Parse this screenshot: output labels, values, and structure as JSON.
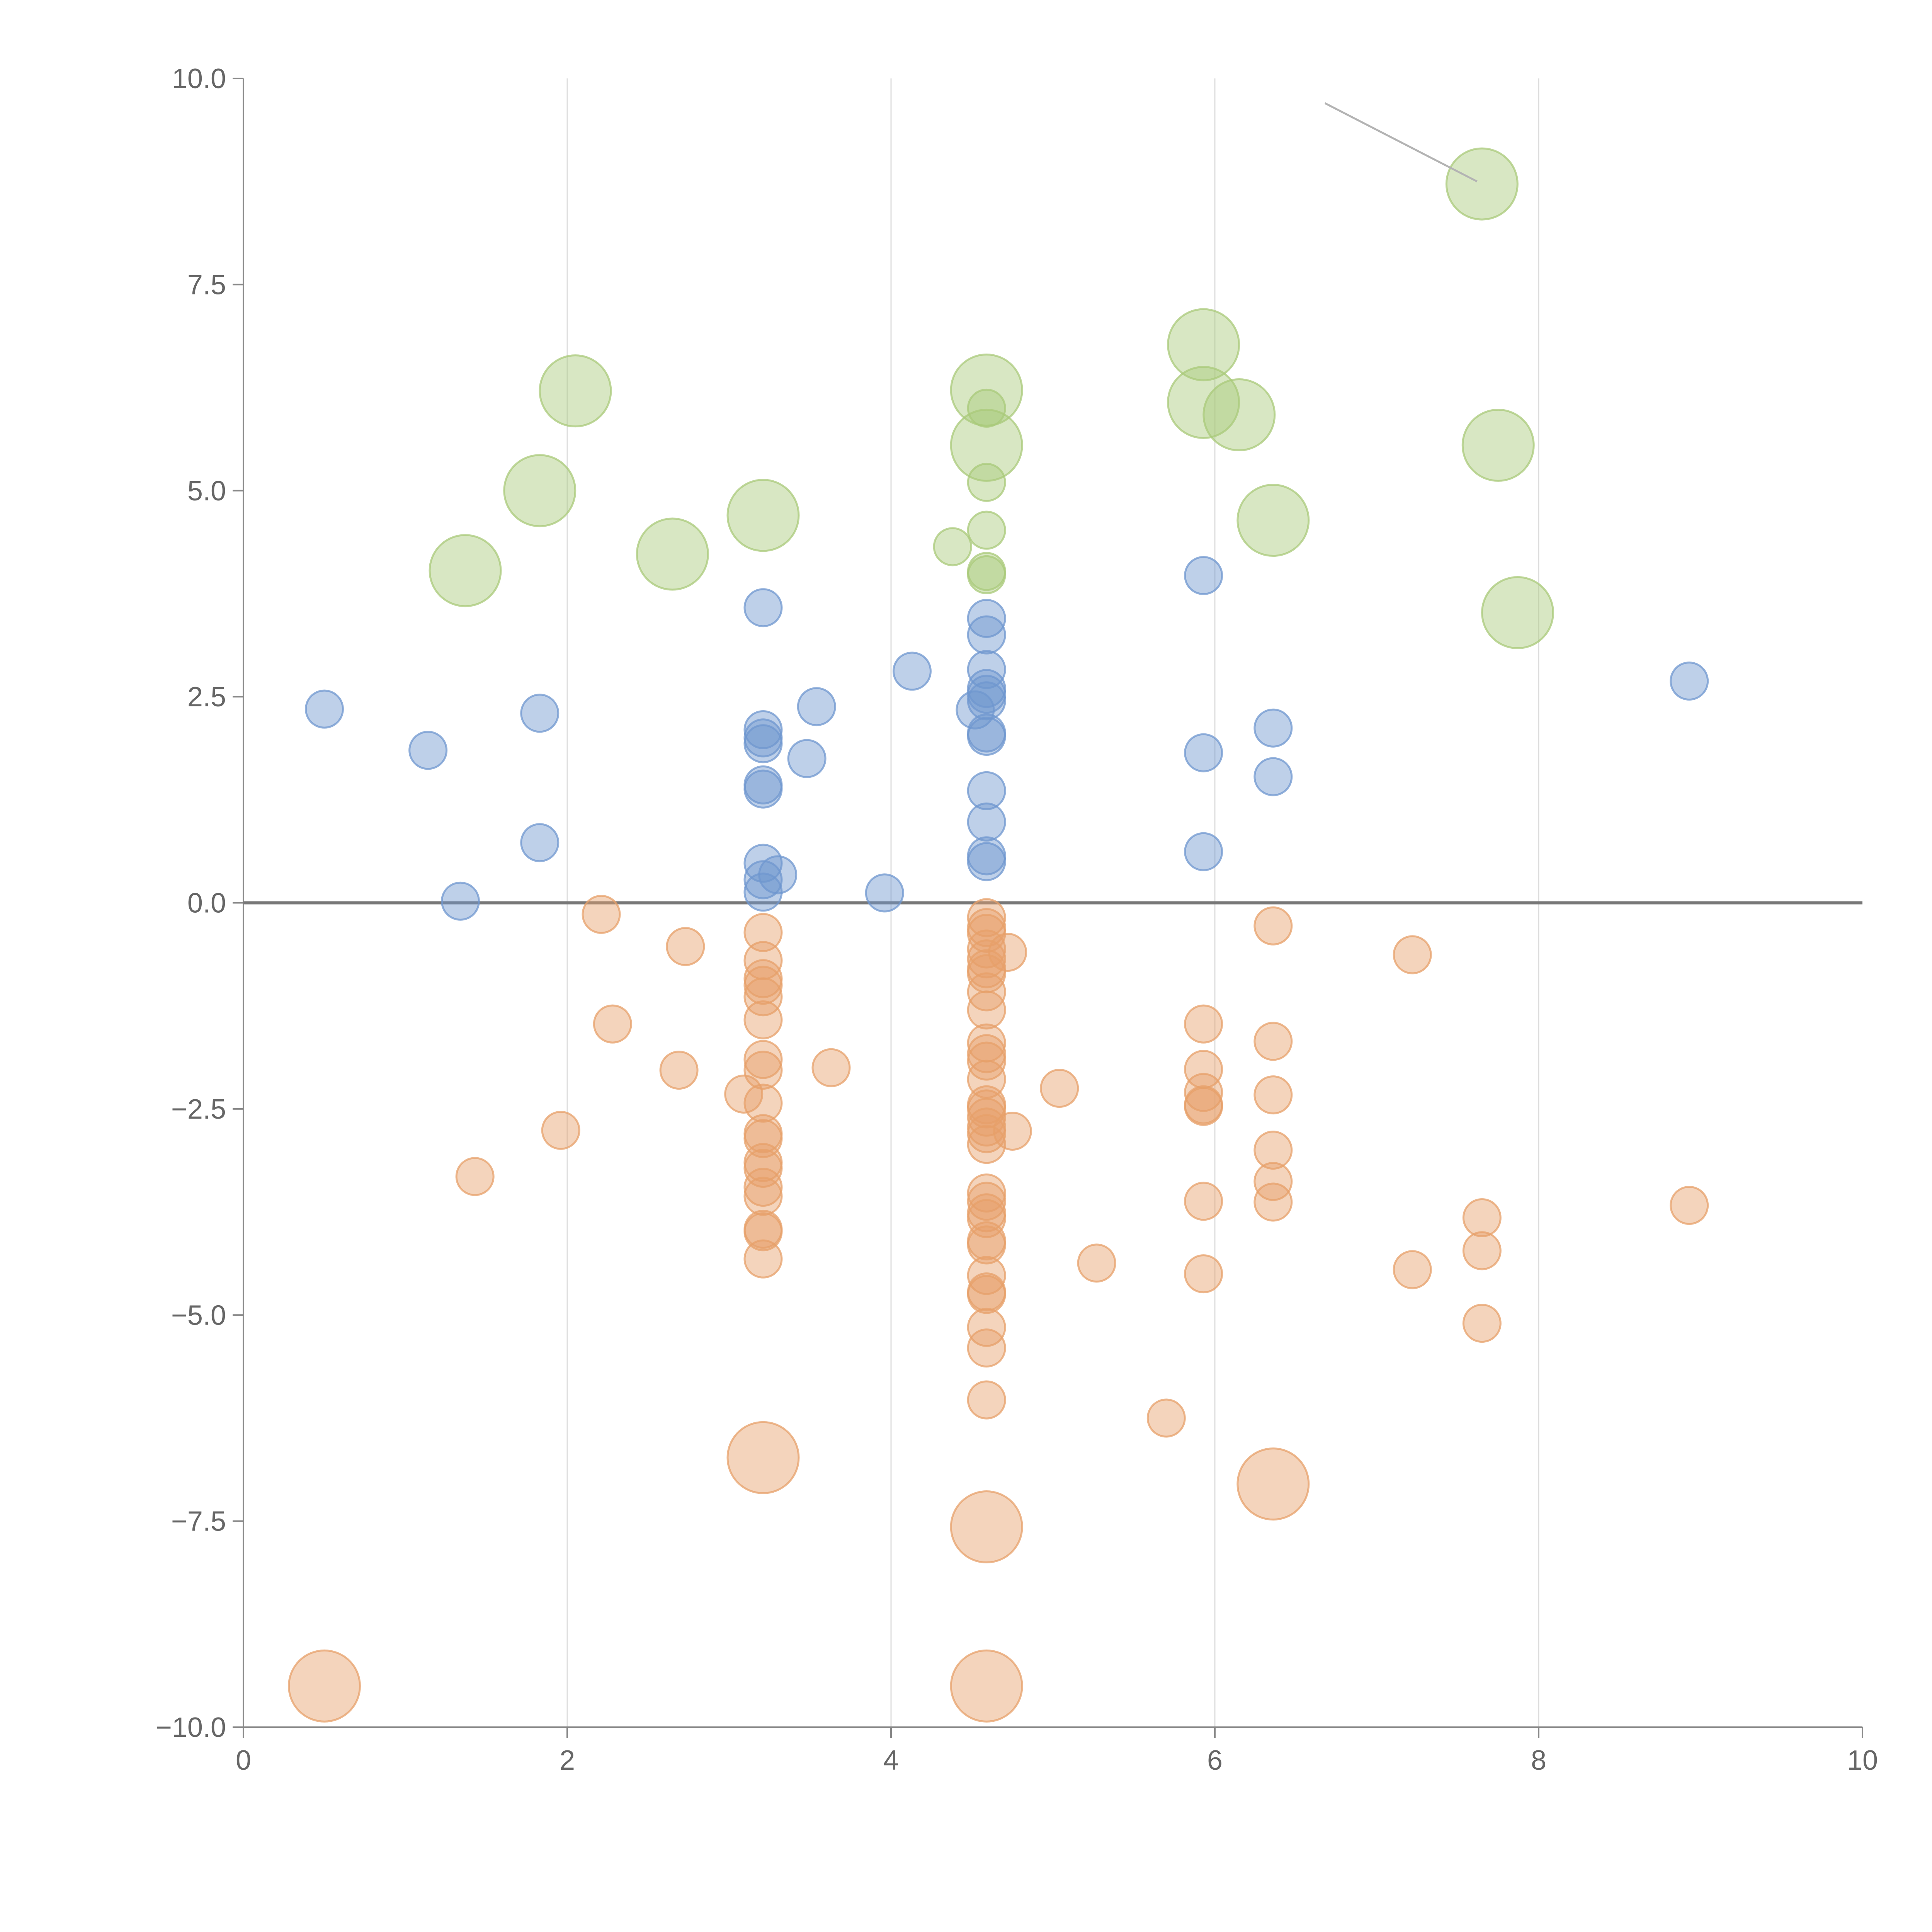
{
  "chart_data": {
    "type": "scatter",
    "title": "",
    "xlabel": "",
    "ylabel": "",
    "xlim": [
      0,
      10
    ],
    "ylim": [
      -10,
      10
    ],
    "x_ticks": [
      0,
      2,
      4,
      6,
      8,
      10
    ],
    "x_tick_labels": [
      "0",
      "2",
      "4",
      "6",
      "8",
      "10"
    ],
    "y_ticks": [
      10,
      7.5,
      5,
      2.5,
      0,
      -2.5,
      -5,
      -7.5,
      -10
    ],
    "y_tick_labels": [
      "10.0",
      "7.5",
      "5.0",
      "2.5",
      "0.0",
      "−2.5",
      "−5.0",
      "−7.5",
      "−10.0"
    ],
    "grid": "vertical",
    "reference_line_y": 0,
    "legend": "none",
    "series": [
      {
        "name": "positive",
        "color": "#6f97cf",
        "points": [
          {
            "x": 0.5,
            "y": 2.35
          },
          {
            "x": 1.14,
            "y": 1.85
          },
          {
            "x": 1.34,
            "y": 0.02
          },
          {
            "x": 1.83,
            "y": 2.3
          },
          {
            "x": 1.83,
            "y": 0.73
          },
          {
            "x": 3.21,
            "y": 3.58
          },
          {
            "x": 3.21,
            "y": 2.1
          },
          {
            "x": 3.21,
            "y": 2.0
          },
          {
            "x": 3.21,
            "y": 1.93
          },
          {
            "x": 3.21,
            "y": 1.43
          },
          {
            "x": 3.21,
            "y": 1.38
          },
          {
            "x": 3.21,
            "y": 0.48
          },
          {
            "x": 3.21,
            "y": 0.28
          },
          {
            "x": 3.21,
            "y": 0.13
          },
          {
            "x": 3.3,
            "y": 0.34
          },
          {
            "x": 3.48,
            "y": 1.75
          },
          {
            "x": 3.54,
            "y": 2.38
          },
          {
            "x": 3.96,
            "y": 0.12
          },
          {
            "x": 4.13,
            "y": 2.81
          },
          {
            "x": 4.52,
            "y": 2.34
          },
          {
            "x": 4.59,
            "y": 3.45
          },
          {
            "x": 4.59,
            "y": 3.25
          },
          {
            "x": 4.59,
            "y": 2.83
          },
          {
            "x": 4.59,
            "y": 2.6
          },
          {
            "x": 4.59,
            "y": 2.53
          },
          {
            "x": 4.59,
            "y": 2.45
          },
          {
            "x": 4.59,
            "y": 2.06
          },
          {
            "x": 4.59,
            "y": 2.02
          },
          {
            "x": 4.59,
            "y": 1.36
          },
          {
            "x": 4.59,
            "y": 0.98
          },
          {
            "x": 4.59,
            "y": 0.57
          },
          {
            "x": 4.59,
            "y": 0.5
          },
          {
            "x": 5.93,
            "y": 3.97
          },
          {
            "x": 5.93,
            "y": 1.82
          },
          {
            "x": 5.93,
            "y": 0.62
          },
          {
            "x": 6.36,
            "y": 2.12
          },
          {
            "x": 6.36,
            "y": 1.53
          },
          {
            "x": 8.93,
            "y": 2.69
          }
        ]
      },
      {
        "name": "negative",
        "color": "#e7a06a",
        "points": [
          {
            "x": 1.43,
            "y": -3.32
          },
          {
            "x": 1.96,
            "y": -2.76
          },
          {
            "x": 2.21,
            "y": -0.14
          },
          {
            "x": 2.28,
            "y": -1.47
          },
          {
            "x": 2.69,
            "y": -2.03
          },
          {
            "x": 2.73,
            "y": -0.53
          },
          {
            "x": 3.09,
            "y": -2.32
          },
          {
            "x": 3.21,
            "y": -0.36
          },
          {
            "x": 3.21,
            "y": -0.7
          },
          {
            "x": 3.21,
            "y": -0.92
          },
          {
            "x": 3.21,
            "y": -1.0
          },
          {
            "x": 3.21,
            "y": -1.14
          },
          {
            "x": 3.21,
            "y": -1.42
          },
          {
            "x": 3.21,
            "y": -1.9
          },
          {
            "x": 3.21,
            "y": -2.03
          },
          {
            "x": 3.21,
            "y": -2.43
          },
          {
            "x": 3.21,
            "y": -2.8
          },
          {
            "x": 3.21,
            "y": -2.86
          },
          {
            "x": 3.21,
            "y": -3.15
          },
          {
            "x": 3.21,
            "y": -3.22
          },
          {
            "x": 3.21,
            "y": -3.45
          },
          {
            "x": 3.21,
            "y": -3.56
          },
          {
            "x": 3.21,
            "y": -3.96
          },
          {
            "x": 3.21,
            "y": -3.99
          },
          {
            "x": 3.21,
            "y": -4.32
          },
          {
            "x": 3.63,
            "y": -2.0
          },
          {
            "x": 4.59,
            "y": -0.18
          },
          {
            "x": 4.59,
            "y": -0.3
          },
          {
            "x": 4.59,
            "y": -0.37
          },
          {
            "x": 4.59,
            "y": -0.56
          },
          {
            "x": 4.59,
            "y": -0.68
          },
          {
            "x": 4.59,
            "y": -0.8
          },
          {
            "x": 4.59,
            "y": -0.86
          },
          {
            "x": 4.59,
            "y": -1.08
          },
          {
            "x": 4.59,
            "y": -1.3
          },
          {
            "x": 4.59,
            "y": -1.7
          },
          {
            "x": 4.59,
            "y": -1.83
          },
          {
            "x": 4.59,
            "y": -1.92
          },
          {
            "x": 4.59,
            "y": -2.14
          },
          {
            "x": 4.59,
            "y": -2.45
          },
          {
            "x": 4.59,
            "y": -2.5
          },
          {
            "x": 4.59,
            "y": -2.6
          },
          {
            "x": 4.59,
            "y": -2.72
          },
          {
            "x": 4.59,
            "y": -2.8
          },
          {
            "x": 4.59,
            "y": -2.93
          },
          {
            "x": 4.59,
            "y": -3.52
          },
          {
            "x": 4.59,
            "y": -3.62
          },
          {
            "x": 4.59,
            "y": -3.76
          },
          {
            "x": 4.59,
            "y": -3.83
          },
          {
            "x": 4.59,
            "y": -4.1
          },
          {
            "x": 4.59,
            "y": -4.15
          },
          {
            "x": 4.59,
            "y": -4.52
          },
          {
            "x": 4.59,
            "y": -4.72
          },
          {
            "x": 4.59,
            "y": -4.75
          },
          {
            "x": 4.59,
            "y": -5.15
          },
          {
            "x": 4.59,
            "y": -5.4
          },
          {
            "x": 4.59,
            "y": -6.03
          },
          {
            "x": 4.72,
            "y": -0.6
          },
          {
            "x": 4.75,
            "y": -2.77
          },
          {
            "x": 5.04,
            "y": -2.25
          },
          {
            "x": 5.27,
            "y": -4.37
          },
          {
            "x": 5.7,
            "y": -6.25
          },
          {
            "x": 5.93,
            "y": -1.47
          },
          {
            "x": 5.93,
            "y": -2.02
          },
          {
            "x": 5.93,
            "y": -2.3
          },
          {
            "x": 5.93,
            "y": -2.45
          },
          {
            "x": 5.93,
            "y": -2.47
          },
          {
            "x": 5.93,
            "y": -3.62
          },
          {
            "x": 5.93,
            "y": -4.5
          },
          {
            "x": 6.36,
            "y": -0.28
          },
          {
            "x": 6.36,
            "y": -1.68
          },
          {
            "x": 6.36,
            "y": -2.33
          },
          {
            "x": 6.36,
            "y": -3.0
          },
          {
            "x": 6.36,
            "y": -3.38
          },
          {
            "x": 6.36,
            "y": -3.63
          },
          {
            "x": 7.22,
            "y": -0.63
          },
          {
            "x": 7.22,
            "y": -4.45
          },
          {
            "x": 7.65,
            "y": -3.82
          },
          {
            "x": 7.65,
            "y": -4.22
          },
          {
            "x": 7.65,
            "y": -5.1
          },
          {
            "x": 8.93,
            "y": -3.67
          }
        ]
      },
      {
        "name": "positive-small",
        "color": "#a9c97a",
        "points": [
          {
            "x": 4.38,
            "y": 4.32
          },
          {
            "x": 4.59,
            "y": 6.0
          },
          {
            "x": 4.59,
            "y": 5.1
          },
          {
            "x": 4.59,
            "y": 4.52
          },
          {
            "x": 4.59,
            "y": 4.02
          },
          {
            "x": 4.59,
            "y": 3.98
          }
        ]
      },
      {
        "name": "positive-large",
        "color": "#a9c97a",
        "size": "large",
        "points": [
          {
            "x": 1.37,
            "y": 4.03
          },
          {
            "x": 1.83,
            "y": 5.0
          },
          {
            "x": 2.05,
            "y": 6.21
          },
          {
            "x": 2.65,
            "y": 4.23
          },
          {
            "x": 3.21,
            "y": 4.7
          },
          {
            "x": 4.59,
            "y": 6.22
          },
          {
            "x": 4.59,
            "y": 5.55
          },
          {
            "x": 5.93,
            "y": 6.77
          },
          {
            "x": 5.93,
            "y": 6.07
          },
          {
            "x": 6.15,
            "y": 5.92
          },
          {
            "x": 6.36,
            "y": 4.64
          },
          {
            "x": 7.65,
            "y": 8.72
          },
          {
            "x": 7.75,
            "y": 5.55
          },
          {
            "x": 7.87,
            "y": 3.52
          }
        ]
      },
      {
        "name": "negative-large",
        "color": "#e7a06a",
        "size": "large",
        "points": [
          {
            "x": 0.5,
            "y": -9.5
          },
          {
            "x": 3.21,
            "y": -6.73
          },
          {
            "x": 4.59,
            "y": -7.57
          },
          {
            "x": 4.59,
            "y": -9.5
          },
          {
            "x": 6.36,
            "y": -7.05
          }
        ]
      }
    ],
    "annotations": [
      {
        "type": "leader",
        "from": {
          "x": 6.68,
          "y": 9.7
        },
        "to": {
          "x": 7.62,
          "y": 8.75
        }
      }
    ]
  }
}
